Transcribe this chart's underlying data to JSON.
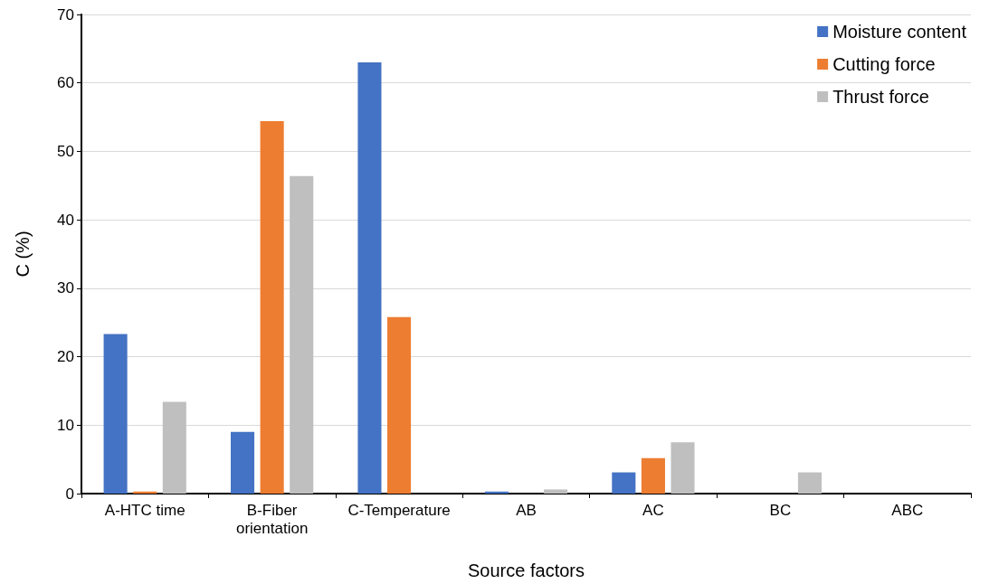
{
  "chart_data": {
    "type": "bar",
    "xlabel": "Source factors",
    "ylabel": "C (%)",
    "categories": [
      "A-HTC time",
      "B-Fiber\norientation",
      "C-Temperature",
      "AB",
      "AC",
      "BC",
      "ABC"
    ],
    "series": [
      {
        "name": "Moisture content",
        "color": "#4472c4",
        "values": [
          23.3,
          9.0,
          63.0,
          0.3,
          3.1,
          0,
          0
        ]
      },
      {
        "name": "Cutting force",
        "color": "#ed7d31",
        "values": [
          0.3,
          54.4,
          25.8,
          0,
          5.2,
          0,
          0
        ]
      },
      {
        "name": "Thrust force",
        "color": "#bfbfbf",
        "values": [
          13.4,
          46.4,
          0,
          0.6,
          7.5,
          3.1,
          0
        ]
      }
    ],
    "ylim": [
      0,
      70
    ],
    "yticks": [
      0,
      10,
      20,
      30,
      40,
      50,
      60,
      70
    ],
    "grid": "y",
    "legend": "top right"
  }
}
